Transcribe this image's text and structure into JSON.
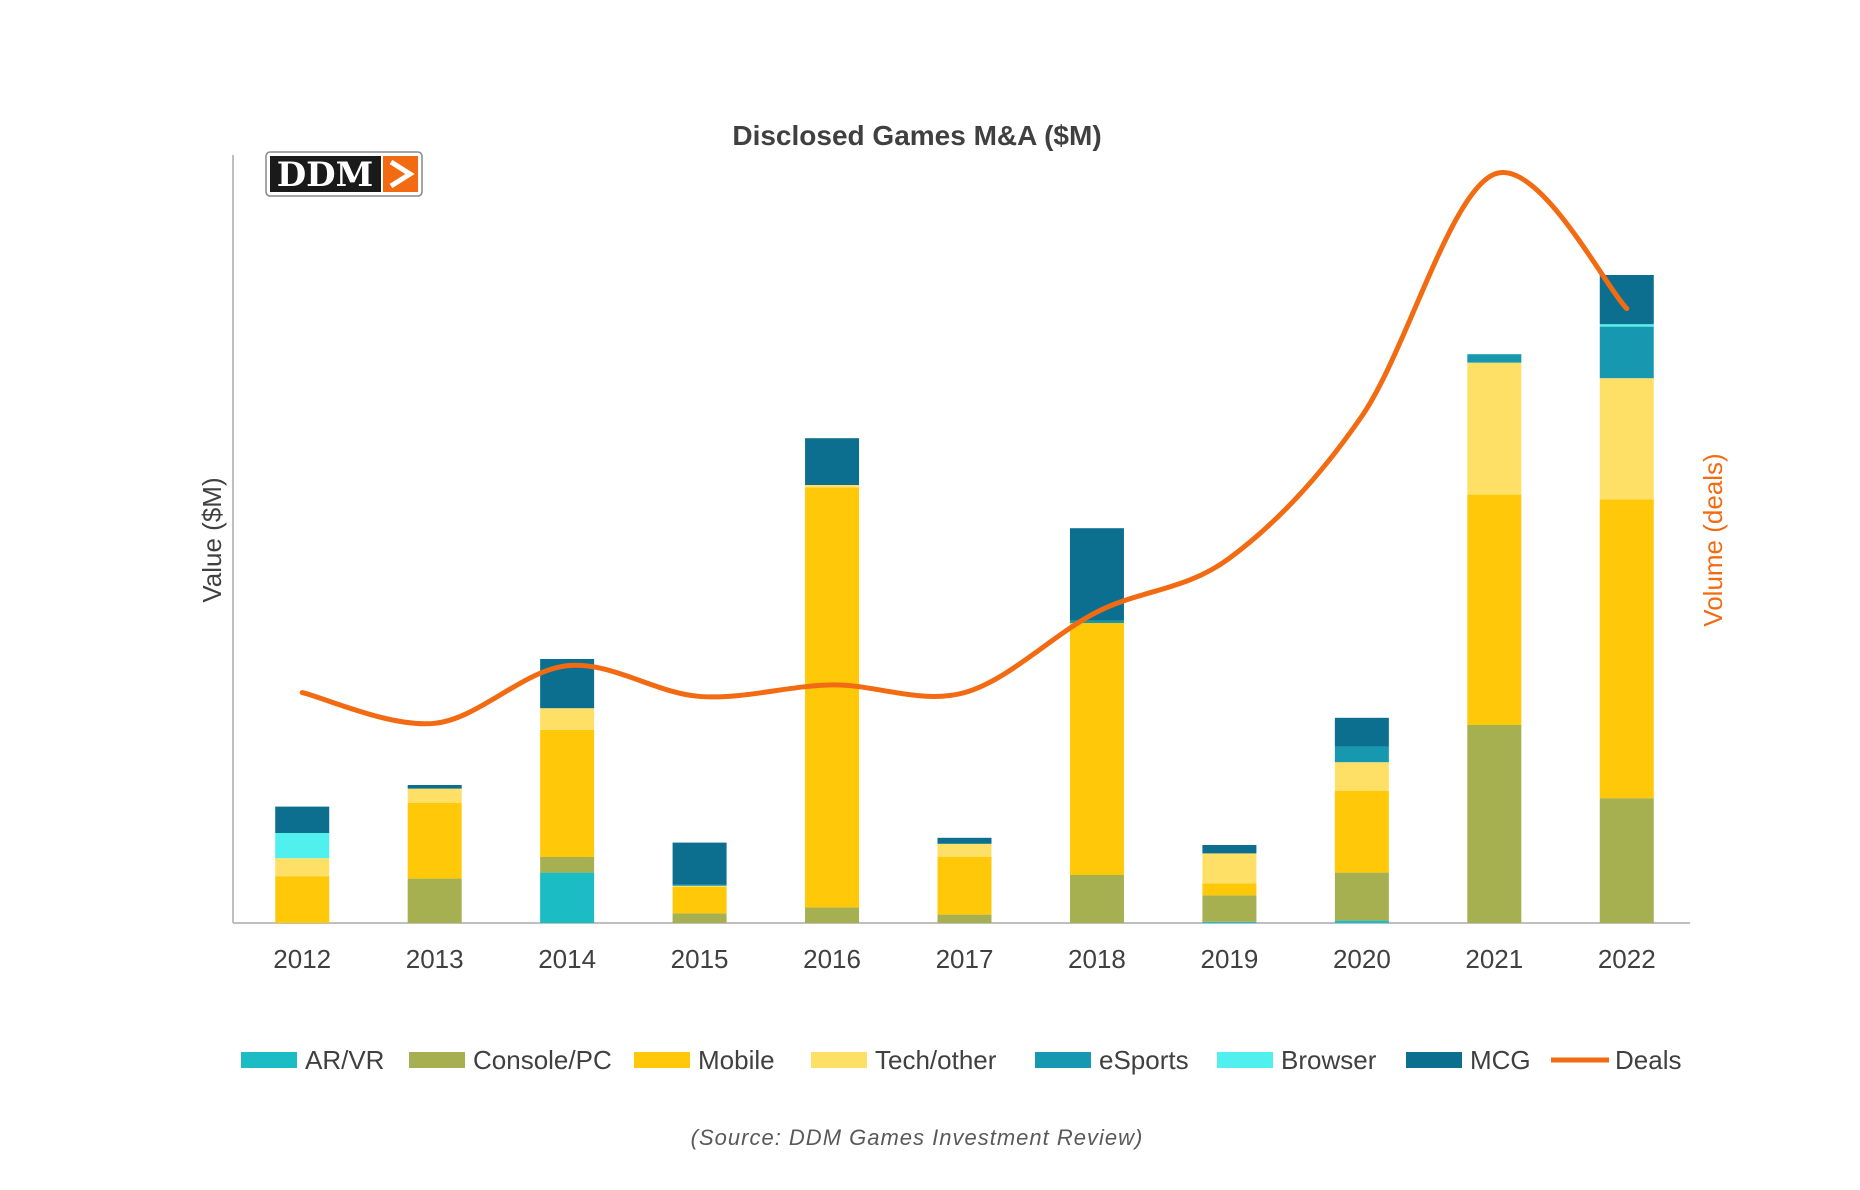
{
  "logo": {
    "text": "DDM",
    "arrow": ">"
  },
  "source": "(Source: DDM Games Investment Review)",
  "colors": {
    "AR/VR": "#1bbcc4",
    "Console/PC": "#a6b050",
    "Mobile": "#ffc90a",
    "Tech/other": "#ffe066",
    "eSports": "#1699b0",
    "Browser": "#4ff0ee",
    "MCG": "#0c6f90",
    "Deals": "#f26b12",
    "axis": "#bfbfbf",
    "text": "#404040"
  },
  "chart_data": {
    "type": "bar",
    "stacked": true,
    "title": "Disclosed Games M&A ($M)",
    "ylabel": "Value ($M)",
    "y2label": "Volume (deals)",
    "grid": false,
    "legend_position": "bottom",
    "categories": [
      "2012",
      "2013",
      "2014",
      "2015",
      "2016",
      "2017",
      "2018",
      "2019",
      "2020",
      "2021",
      "2022"
    ],
    "ylim": [
      0,
      640
    ],
    "y2lim": [
      0,
      100
    ],
    "series": [
      {
        "name": "AR/VR",
        "values": [
          0,
          0,
          42,
          0,
          0,
          0,
          0,
          1,
          2,
          0,
          0
        ]
      },
      {
        "name": "Console/PC",
        "values": [
          0,
          37,
          13,
          8,
          13,
          7,
          40,
          22,
          40,
          165,
          104
        ]
      },
      {
        "name": "Mobile",
        "values": [
          39,
          63,
          106,
          22,
          350,
          48,
          210,
          10,
          68,
          192,
          249
        ]
      },
      {
        "name": "Tech/other",
        "values": [
          15,
          12,
          18,
          1,
          2,
          11,
          0,
          25,
          24,
          110,
          101
        ]
      },
      {
        "name": "eSports",
        "values": [
          0,
          0,
          0,
          1,
          0,
          0,
          2,
          0,
          13,
          7,
          43
        ]
      },
      {
        "name": "Browser",
        "values": [
          21,
          0,
          0,
          0,
          0,
          0,
          0,
          0,
          0,
          0,
          2
        ]
      },
      {
        "name": "MCG",
        "values": [
          22,
          3,
          41,
          35,
          39,
          5,
          77,
          7,
          24,
          0,
          41
        ]
      }
    ],
    "line": {
      "name": "Deals",
      "values": [
        30,
        26,
        33.5,
        29.5,
        31,
        30,
        40.5,
        47.5,
        66,
        97.5,
        80
      ]
    }
  }
}
